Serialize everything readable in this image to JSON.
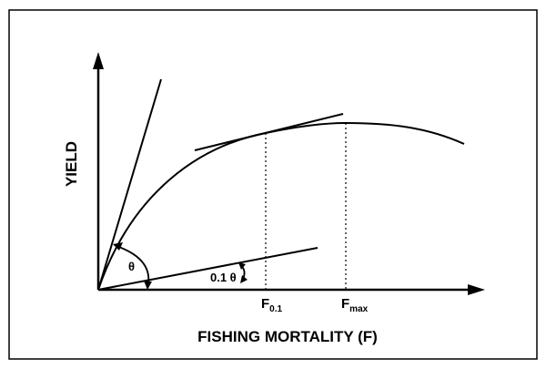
{
  "figure": {
    "x_axis_label": "FISHING MORTALITY (F)",
    "y_axis_label": "YIELD",
    "markers": [
      {
        "id": "f01",
        "base": "F",
        "subscript": "0.1"
      },
      {
        "id": "fmax",
        "base": "F",
        "subscript": "max"
      }
    ],
    "angles": {
      "origin_tangent": "θ",
      "marginal_tangent": "0.1 θ"
    }
  }
}
